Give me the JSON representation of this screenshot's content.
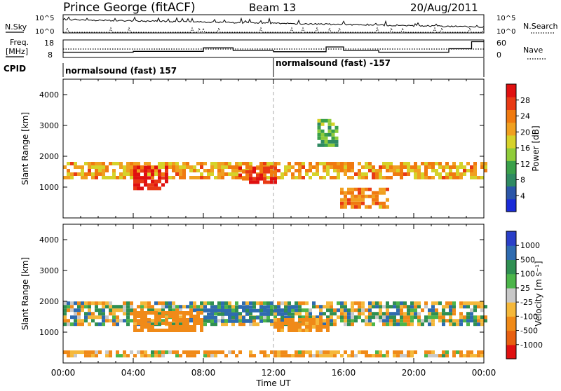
{
  "header": {
    "station": "Prince George (fitACF)",
    "beam": "Beam 13",
    "date": "20/Aug/2011"
  },
  "noise_panel": {
    "left_label": "N.Sky",
    "right_label": "N.Search",
    "left_ticks": [
      "10^5",
      "10^0"
    ],
    "right_ticks": [
      "10^5",
      "10^0"
    ]
  },
  "freq_panel": {
    "left_label_line1": "Freq.",
    "left_label_line2": "[MHz]",
    "left_ticks": [
      "18",
      "8"
    ],
    "right_label": "Nave",
    "right_ticks": [
      "60",
      "0"
    ]
  },
  "cpid": {
    "label": "CPID",
    "segments": [
      "normalsound (fast) 157",
      "normalsound (fast) -157"
    ]
  },
  "x_axis": {
    "label": "Time UT",
    "ticks": [
      "00:00",
      "04:00",
      "08:00",
      "12:00",
      "16:00",
      "20:00",
      "00:00"
    ]
  },
  "power_panel": {
    "ylabel": "Slant Range [km]",
    "yticks": [
      "4000",
      "3000",
      "2000",
      "1000"
    ],
    "colorbar_label": "Power [dB]",
    "colorbar_ticks": [
      "28",
      "24",
      "20",
      "16",
      "12",
      "8",
      "4"
    ]
  },
  "velocity_panel": {
    "ylabel": "Slant Range [km]",
    "yticks": [
      "4000",
      "3000",
      "2000",
      "1000"
    ],
    "colorbar_label": "Velocity [m s⁻¹]",
    "colorbar_ticks": [
      "1000",
      "500",
      "100",
      "25",
      "-25",
      "-100",
      "-500",
      "-1000"
    ]
  },
  "chart_data": {
    "type": "heatmap",
    "x_unit": "hours UT",
    "xlim": [
      0,
      24
    ],
    "ylim": [
      0,
      4500
    ],
    "power_colors": [
      "#ffffff",
      "#1a2bd8",
      "#2b56a8",
      "#2f8a62",
      "#3aa04a",
      "#8fcc3a",
      "#d6d22a",
      "#f0a020",
      "#f07a10",
      "#e83a14",
      "#e01010"
    ],
    "velocity_colors": [
      "#2a3fc8",
      "#2e6bb0",
      "#2f8f52",
      "#4cb54a",
      "#c8c8c8",
      "#f5b83a",
      "#f08a18",
      "#e86010",
      "#e01010"
    ],
    "power_bands": [
      {
        "t0": 0.0,
        "t1": 24.0,
        "r0": 1250,
        "r1": 1750,
        "dB": 20
      },
      {
        "t0": 4.0,
        "t1": 6.0,
        "r0": 900,
        "r1": 1600,
        "dB": 28
      },
      {
        "t0": 10.0,
        "t1": 12.0,
        "r0": 1100,
        "r1": 1600,
        "dB": 26
      },
      {
        "t0": 15.8,
        "t1": 18.5,
        "r0": 300,
        "r1": 900,
        "dB": 22
      },
      {
        "t0": 14.5,
        "t1": 15.5,
        "r0": 2300,
        "r1": 3100,
        "dB": 12
      }
    ],
    "velocity_bands": [
      {
        "t0": 0.0,
        "t1": 24.0,
        "r0": 1200,
        "r1": 1900,
        "v": 0
      },
      {
        "t0": 4.0,
        "t1": 8.0,
        "r0": 1000,
        "r1": 1600,
        "v": -300
      },
      {
        "t0": 8.0,
        "t1": 13.0,
        "r0": 1300,
        "r1": 1800,
        "v": 150
      },
      {
        "t0": 12.0,
        "t1": 15.0,
        "r0": 1000,
        "r1": 1400,
        "v": -200
      },
      {
        "t0": 0.0,
        "t1": 24.0,
        "r0": 180,
        "r1": 400,
        "v": -120
      }
    ],
    "frequency_MHz": [
      {
        "t0": 0.0,
        "t1": 4.0,
        "f": 11.0
      },
      {
        "t0": 4.0,
        "t1": 8.0,
        "f": 11.5
      },
      {
        "t0": 8.0,
        "t1": 9.7,
        "f": 13.5
      },
      {
        "t0": 9.7,
        "t1": 12.0,
        "f": 12.0
      },
      {
        "t0": 12.0,
        "t1": 15.0,
        "f": 11.3
      },
      {
        "t0": 15.0,
        "t1": 16.0,
        "f": 14.0
      },
      {
        "t0": 16.0,
        "t1": 18.0,
        "f": 12.0
      },
      {
        "t0": 18.0,
        "t1": 22.0,
        "f": 11.0
      },
      {
        "t0": 22.0,
        "t1": 23.3,
        "f": 13.0
      },
      {
        "t0": 23.3,
        "t1": 24.0,
        "f": 17.0
      }
    ],
    "nave_dotted_level": 24
  }
}
